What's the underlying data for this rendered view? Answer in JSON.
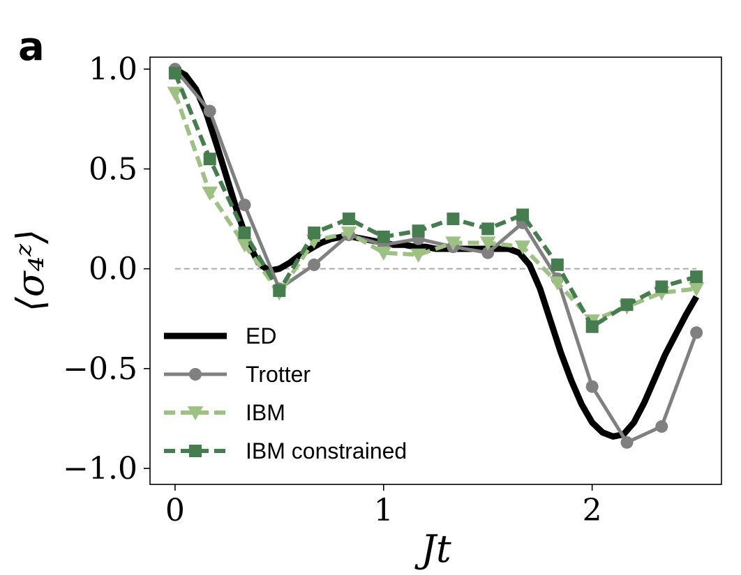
{
  "panel_label": "a",
  "chart_data": {
    "type": "line",
    "xlabel": "Jt",
    "ylabel": "⟨σ₄ᶻ⟩",
    "xlim": [
      -0.12,
      2.62
    ],
    "ylim": [
      -1.08,
      1.06
    ],
    "x_ticks": [
      0,
      1,
      2
    ],
    "x_tick_labels": [
      "0",
      "1",
      "2"
    ],
    "y_ticks": [
      1.0,
      0.5,
      0.0,
      -0.5,
      -1.0
    ],
    "y_tick_labels": [
      "1.0",
      "0.5",
      "0.0",
      "−0.5",
      "−1.0"
    ],
    "reference_line_y": 0.0,
    "legend_position": "lower-left",
    "series": [
      {
        "name": "ED",
        "color": "#000000",
        "style": "solid",
        "marker": "none",
        "x": [
          0.0,
          0.05,
          0.1,
          0.15,
          0.2,
          0.25,
          0.3,
          0.35,
          0.4,
          0.45,
          0.5,
          0.55,
          0.6,
          0.65,
          0.7,
          0.75,
          0.8,
          0.85,
          0.9,
          0.95,
          1.0,
          1.05,
          1.1,
          1.15,
          1.2,
          1.25,
          1.3,
          1.35,
          1.4,
          1.45,
          1.5,
          1.55,
          1.6,
          1.65,
          1.7,
          1.75,
          1.8,
          1.85,
          1.9,
          1.95,
          2.0,
          2.05,
          2.1,
          2.15,
          2.2,
          2.25,
          2.3,
          2.35,
          2.4,
          2.45,
          2.5
        ],
        "y": [
          1.0,
          0.97,
          0.9,
          0.78,
          0.62,
          0.45,
          0.28,
          0.13,
          0.03,
          -0.01,
          0.0,
          0.03,
          0.07,
          0.1,
          0.13,
          0.15,
          0.16,
          0.16,
          0.15,
          0.14,
          0.13,
          0.12,
          0.12,
          0.11,
          0.11,
          0.1,
          0.1,
          0.1,
          0.1,
          0.1,
          0.1,
          0.1,
          0.1,
          0.08,
          0.02,
          -0.1,
          -0.26,
          -0.42,
          -0.56,
          -0.68,
          -0.77,
          -0.82,
          -0.84,
          -0.83,
          -0.77,
          -0.67,
          -0.55,
          -0.43,
          -0.33,
          -0.23,
          -0.14
        ]
      },
      {
        "name": "Trotter",
        "color": "#808080",
        "style": "solid",
        "marker": "circle",
        "x": [
          0.0,
          0.1667,
          0.3333,
          0.5,
          0.6667,
          0.8333,
          1.0,
          1.1667,
          1.3333,
          1.5,
          1.6667,
          1.8333,
          2.0,
          2.1667,
          2.3333,
          2.5
        ],
        "y": [
          1.0,
          0.79,
          0.32,
          -0.1,
          0.02,
          0.17,
          0.12,
          0.15,
          0.11,
          0.08,
          0.23,
          -0.05,
          -0.59,
          -0.87,
          -0.79,
          -0.32
        ]
      },
      {
        "name": "IBM",
        "color": "#9dc183",
        "style": "dashed",
        "marker": "triangle-down",
        "x": [
          0.0,
          0.1667,
          0.3333,
          0.5,
          0.6667,
          0.8333,
          1.0,
          1.1667,
          1.3333,
          1.5,
          1.6667,
          1.8333,
          2.0,
          2.1667,
          2.3333,
          2.5
        ],
        "y": [
          0.88,
          0.38,
          0.12,
          -0.12,
          0.14,
          0.18,
          0.08,
          0.07,
          0.13,
          0.13,
          0.11,
          -0.07,
          -0.26,
          -0.19,
          -0.12,
          -0.1
        ]
      },
      {
        "name": "IBM constrained",
        "color": "#467d4f",
        "style": "dashed",
        "marker": "square",
        "x": [
          0.0,
          0.1667,
          0.3333,
          0.5,
          0.6667,
          0.8333,
          1.0,
          1.1667,
          1.3333,
          1.5,
          1.6667,
          1.8333,
          2.0,
          2.1667,
          2.3333,
          2.5
        ],
        "y": [
          0.98,
          0.55,
          0.18,
          -0.11,
          0.18,
          0.25,
          0.16,
          0.19,
          0.25,
          0.2,
          0.27,
          0.02,
          -0.29,
          -0.18,
          -0.09,
          -0.04
        ]
      }
    ]
  }
}
